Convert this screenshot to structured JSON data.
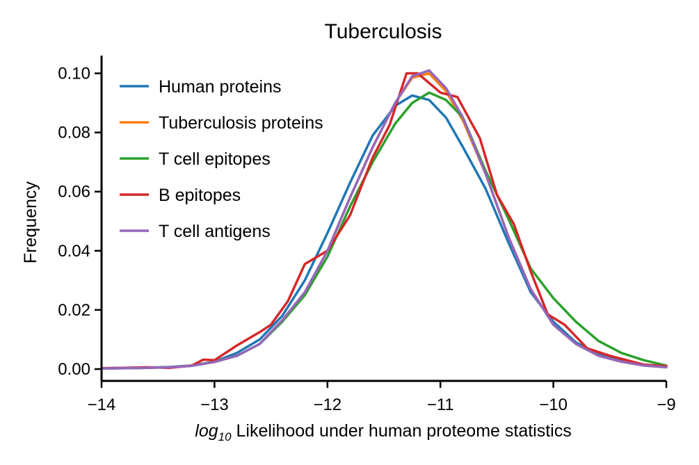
{
  "chart_data": {
    "type": "line",
    "title": "Tuberculosis",
    "xlabel_prefix": "log",
    "xlabel_subscript": "10",
    "xlabel_rest": " Likelihood under human proteome statistics",
    "ylabel": "Frequency",
    "xlim": [
      -14,
      -9
    ],
    "ylim": [
      -0.004,
      0.106
    ],
    "xticks": [
      -14,
      -13,
      -12,
      -11,
      -10,
      -9
    ],
    "xtick_labels": [
      "−14",
      "−13",
      "−12",
      "−11",
      "−10",
      "−9"
    ],
    "yticks": [
      0.0,
      0.02,
      0.04,
      0.06,
      0.08,
      0.1
    ],
    "ytick_labels": [
      "0.00",
      "0.02",
      "0.04",
      "0.06",
      "0.08",
      "0.10"
    ],
    "grid": false,
    "legend_position": "top-left",
    "series": [
      {
        "name": "Human proteins",
        "color": "#1f77b4",
        "x": [
          -14,
          -13.8,
          -13.6,
          -13.4,
          -13.2,
          -13.0,
          -12.8,
          -12.6,
          -12.4,
          -12.2,
          -12.0,
          -11.8,
          -11.6,
          -11.4,
          -11.25,
          -11.1,
          -10.95,
          -10.8,
          -10.6,
          -10.4,
          -10.2,
          -10.0,
          -9.8,
          -9.6,
          -9.4,
          -9.2,
          -9.0
        ],
        "y": [
          0.0003,
          0.0004,
          0.0005,
          0.0007,
          0.0012,
          0.0025,
          0.0055,
          0.01,
          0.018,
          0.03,
          0.046,
          0.063,
          0.079,
          0.089,
          0.0925,
          0.091,
          0.085,
          0.075,
          0.061,
          0.043,
          0.026,
          0.016,
          0.009,
          0.005,
          0.003,
          0.0015,
          0.0008
        ]
      },
      {
        "name": "Tuberculosis proteins",
        "color": "#ff7f0e",
        "x": [
          -14,
          -13.8,
          -13.6,
          -13.4,
          -13.2,
          -13.0,
          -12.8,
          -12.6,
          -12.4,
          -12.2,
          -12.0,
          -11.8,
          -11.6,
          -11.4,
          -11.25,
          -11.1,
          -10.95,
          -10.8,
          -10.6,
          -10.4,
          -10.2,
          -10.0,
          -9.8,
          -9.6,
          -9.4,
          -9.2,
          -9.0
        ],
        "y": [
          0.0002,
          0.0003,
          0.0004,
          0.0006,
          0.0011,
          0.0024,
          0.0045,
          0.0085,
          0.0165,
          0.026,
          0.04,
          0.058,
          0.075,
          0.09,
          0.0985,
          0.1,
          0.094,
          0.084,
          0.066,
          0.045,
          0.027,
          0.015,
          0.0085,
          0.0045,
          0.0025,
          0.0012,
          0.0006
        ]
      },
      {
        "name": "T cell epitopes",
        "color": "#2ca02c",
        "x": [
          -14,
          -13.8,
          -13.6,
          -13.4,
          -13.2,
          -13.0,
          -12.8,
          -12.6,
          -12.4,
          -12.2,
          -12.0,
          -11.8,
          -11.6,
          -11.4,
          -11.25,
          -11.1,
          -10.95,
          -10.8,
          -10.6,
          -10.4,
          -10.2,
          -10.0,
          -9.8,
          -9.6,
          -9.4,
          -9.2,
          -9.0
        ],
        "y": [
          0.0002,
          0.0003,
          0.0004,
          0.0006,
          0.0011,
          0.0025,
          0.0045,
          0.0085,
          0.016,
          0.025,
          0.038,
          0.055,
          0.07,
          0.083,
          0.09,
          0.0935,
          0.091,
          0.085,
          0.067,
          0.051,
          0.034,
          0.024,
          0.016,
          0.0095,
          0.0055,
          0.003,
          0.0012
        ]
      },
      {
        "name": "B epitopes",
        "color": "#d62728",
        "x": [
          -14,
          -13.8,
          -13.6,
          -13.4,
          -13.2,
          -13.1,
          -13.0,
          -12.8,
          -12.6,
          -12.5,
          -12.35,
          -12.2,
          -12.0,
          -11.9,
          -11.8,
          -11.6,
          -11.45,
          -11.3,
          -11.2,
          -11.0,
          -10.85,
          -10.65,
          -10.5,
          -10.35,
          -10.2,
          -10.05,
          -9.9,
          -9.7,
          -9.5,
          -9.2,
          -9.0
        ],
        "y": [
          0.0003,
          0.0004,
          0.0006,
          0.0004,
          0.0012,
          0.0032,
          0.003,
          0.008,
          0.0125,
          0.015,
          0.023,
          0.0355,
          0.04,
          0.046,
          0.052,
          0.0715,
          0.0825,
          0.1,
          0.1,
          0.0935,
          0.092,
          0.078,
          0.059,
          0.049,
          0.033,
          0.0185,
          0.015,
          0.007,
          0.0045,
          0.0015,
          0.001
        ]
      },
      {
        "name": "T cell antigens",
        "color": "#9467bd",
        "x": [
          -14,
          -13.8,
          -13.6,
          -13.4,
          -13.2,
          -13.0,
          -12.8,
          -12.6,
          -12.4,
          -12.2,
          -12.0,
          -11.8,
          -11.6,
          -11.4,
          -11.25,
          -11.1,
          -10.95,
          -10.8,
          -10.6,
          -10.4,
          -10.2,
          -10.0,
          -9.8,
          -9.6,
          -9.4,
          -9.2,
          -9.0
        ],
        "y": [
          0.0002,
          0.0003,
          0.0004,
          0.0006,
          0.0011,
          0.0024,
          0.0045,
          0.0085,
          0.0165,
          0.026,
          0.04,
          0.058,
          0.075,
          0.09,
          0.099,
          0.101,
          0.095,
          0.085,
          0.066,
          0.045,
          0.027,
          0.015,
          0.0085,
          0.0045,
          0.0025,
          0.0012,
          0.0006
        ]
      }
    ]
  }
}
